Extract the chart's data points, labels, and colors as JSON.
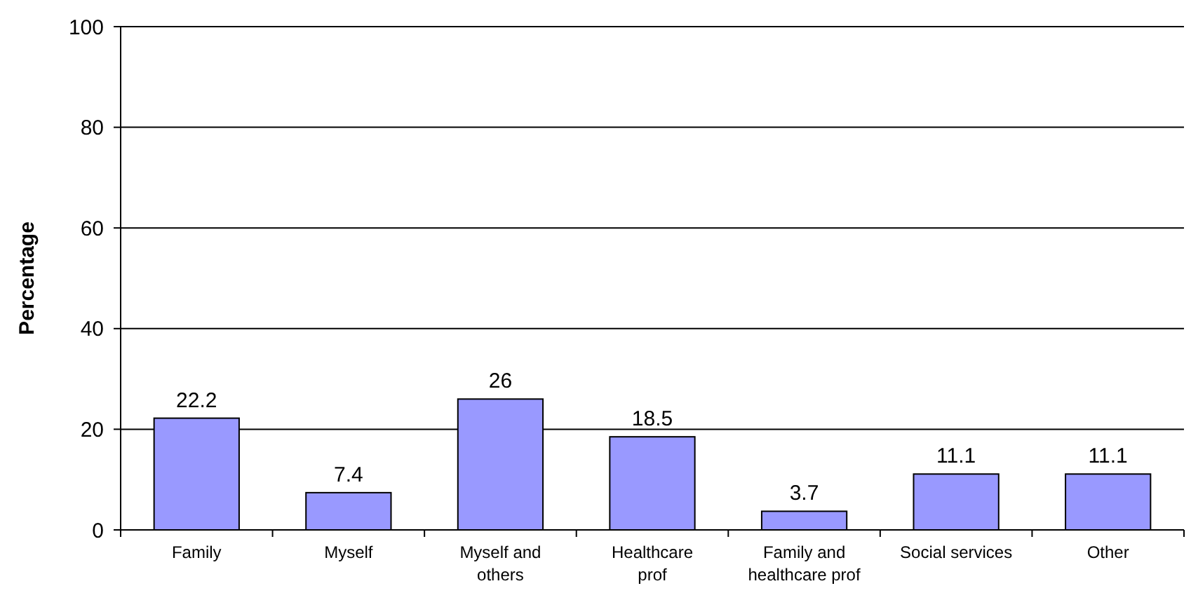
{
  "chart_data": {
    "type": "bar",
    "ylabel": "Percentage",
    "categories": [
      "Family",
      "Myself",
      "Myself and\nothers",
      "Healthcare\nprof",
      "Family and\nhealthcare prof",
      "Social services",
      "Other"
    ],
    "values": [
      22.2,
      7.4,
      26,
      18.5,
      3.7,
      11.1,
      11.1
    ],
    "color": "#9999ff",
    "ylim": [
      0,
      100
    ],
    "yticks": [
      0,
      20,
      40,
      60,
      80,
      100
    ],
    "grid": "y",
    "data_labels": true
  }
}
